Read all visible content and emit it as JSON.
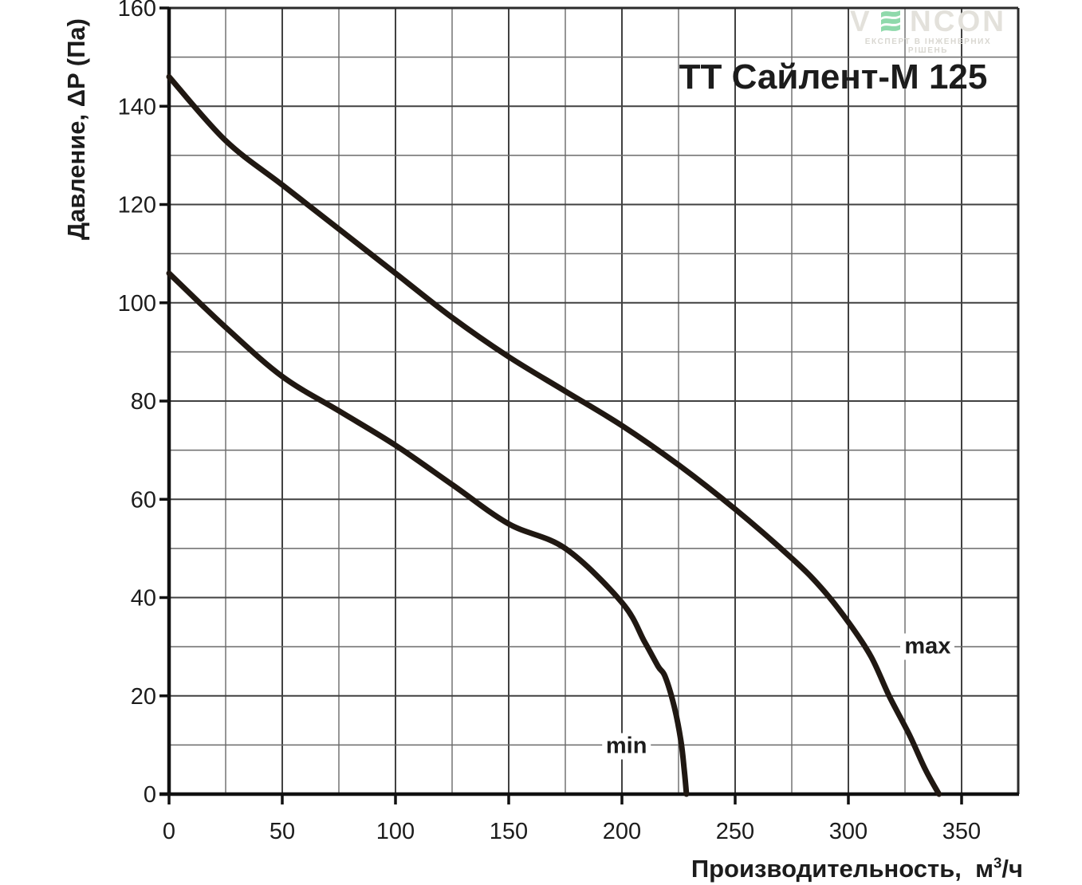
{
  "page": {
    "background": "#ffffff"
  },
  "watermark": {
    "brand_v": "V",
    "brand_rest": "NCON",
    "tagline": "ЕКСПЕРТ В ІНЖЕНЕРНИХ РІШЕНЬ",
    "letter_color": "#e3e1db",
    "tagline_color": "#d9d7d1",
    "e_mark_color": "#8fd9ab"
  },
  "chart_data": {
    "type": "line",
    "title": "ТТ Сайлент-М 125",
    "xlabel": "Производительность, м³/ч",
    "xlabel_parts": {
      "prefix": "Производительность,  м",
      "sup": "3",
      "suffix": "/ч"
    },
    "ylabel": "Давление, ΔP (Па)",
    "xlim": [
      0,
      375
    ],
    "ylim": [
      0,
      160
    ],
    "x_ticks": [
      0,
      50,
      100,
      150,
      200,
      250,
      300,
      350
    ],
    "y_ticks": [
      0,
      20,
      40,
      60,
      80,
      100,
      120,
      140,
      160
    ],
    "x_grid_step": 25,
    "y_grid_step": 10,
    "grid": true,
    "legend_position": "inline-labels",
    "series": [
      {
        "name": "max",
        "label": "max",
        "label_at": [
          335,
          30
        ],
        "points": [
          [
            0,
            146
          ],
          [
            25,
            133
          ],
          [
            50,
            124
          ],
          [
            75,
            115
          ],
          [
            100,
            106
          ],
          [
            125,
            97
          ],
          [
            150,
            89
          ],
          [
            175,
            82
          ],
          [
            200,
            75
          ],
          [
            225,
            67
          ],
          [
            250,
            58
          ],
          [
            275,
            48
          ],
          [
            288,
            42
          ],
          [
            300,
            35
          ],
          [
            310,
            28
          ],
          [
            318,
            20
          ],
          [
            327,
            12
          ],
          [
            334,
            5
          ],
          [
            340,
            0
          ]
        ]
      },
      {
        "name": "min",
        "label": "min",
        "label_at": [
          202,
          9.7
        ],
        "points": [
          [
            0,
            106
          ],
          [
            25,
            95
          ],
          [
            50,
            85
          ],
          [
            75,
            78
          ],
          [
            100,
            71
          ],
          [
            125,
            63
          ],
          [
            150,
            55
          ],
          [
            175,
            50
          ],
          [
            200,
            39
          ],
          [
            210,
            31
          ],
          [
            216,
            26
          ],
          [
            219,
            24
          ],
          [
            223,
            18
          ],
          [
            226,
            11
          ],
          [
            227.5,
            5
          ],
          [
            228.5,
            0
          ]
        ]
      }
    ],
    "curve_color": "#201812",
    "axis_color": "#111111",
    "border_color": "#2b2b2b",
    "grid_minor_color": "#6a6a6a",
    "grid_major_color": "#414141",
    "text_color": "#1c1c1c"
  }
}
